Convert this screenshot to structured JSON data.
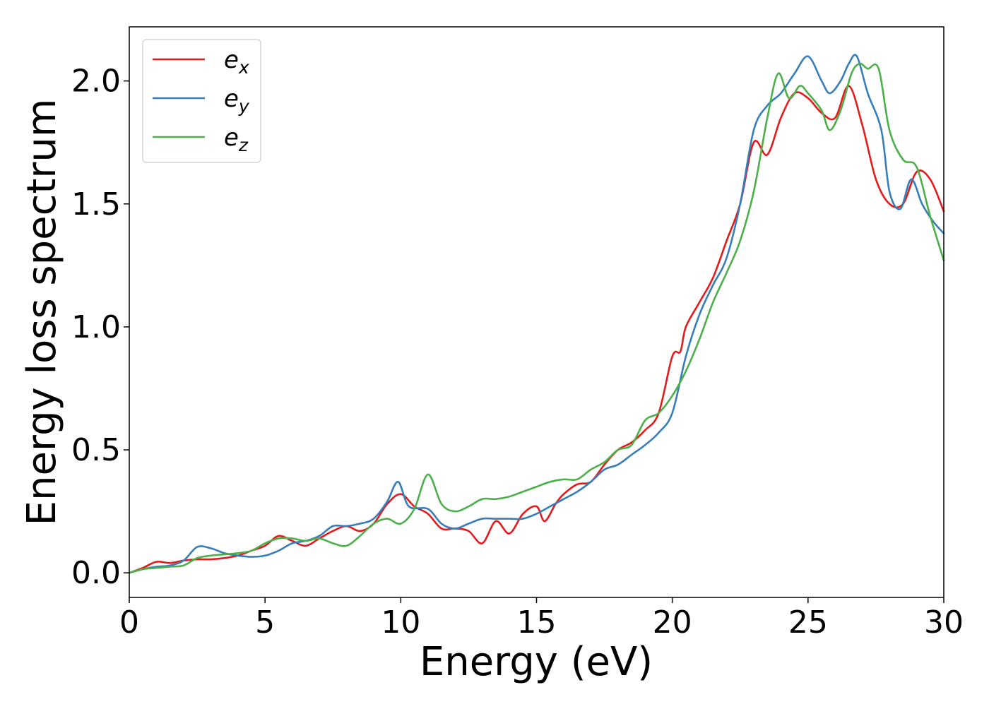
{
  "chart_data": {
    "type": "line",
    "title": "",
    "xlabel": "Energy (eV)",
    "ylabel": "Energy loss spectrum",
    "xlim": [
      0,
      30
    ],
    "ylim": [
      -0.1,
      2.22
    ],
    "xticks": [
      0,
      5,
      10,
      15,
      20,
      25,
      30
    ],
    "xtick_labels": [
      "0",
      "5",
      "10",
      "15",
      "20",
      "25",
      "30"
    ],
    "yticks": [
      0.0,
      0.5,
      1.0,
      1.5,
      2.0
    ],
    "ytick_labels": [
      "0.0",
      "0.5",
      "1.0",
      "1.5",
      "2.0"
    ],
    "grid": false,
    "legend_position": "top-left",
    "series": [
      {
        "name": "e",
        "subscript": "x",
        "color": "#e41a1c",
        "points": [
          [
            0,
            0
          ],
          [
            0.5,
            0.02
          ],
          [
            1,
            0.045
          ],
          [
            1.5,
            0.04
          ],
          [
            2,
            0.05
          ],
          [
            2.5,
            0.055
          ],
          [
            3,
            0.055
          ],
          [
            3.5,
            0.06
          ],
          [
            4,
            0.07
          ],
          [
            4.5,
            0.09
          ],
          [
            5,
            0.11
          ],
          [
            5.5,
            0.15
          ],
          [
            6,
            0.13
          ],
          [
            6.5,
            0.11
          ],
          [
            7,
            0.14
          ],
          [
            7.5,
            0.17
          ],
          [
            8,
            0.19
          ],
          [
            8.5,
            0.17
          ],
          [
            9,
            0.2
          ],
          [
            9.5,
            0.28
          ],
          [
            10,
            0.32
          ],
          [
            10.5,
            0.27
          ],
          [
            11,
            0.24
          ],
          [
            11.5,
            0.18
          ],
          [
            12,
            0.18
          ],
          [
            12.5,
            0.17
          ],
          [
            13,
            0.12
          ],
          [
            13.5,
            0.21
          ],
          [
            14,
            0.16
          ],
          [
            14.5,
            0.24
          ],
          [
            15,
            0.27
          ],
          [
            15.3,
            0.21
          ],
          [
            15.7,
            0.28
          ],
          [
            16,
            0.32
          ],
          [
            16.5,
            0.36
          ],
          [
            17,
            0.37
          ],
          [
            17.5,
            0.44
          ],
          [
            18,
            0.5
          ],
          [
            18.5,
            0.53
          ],
          [
            19,
            0.58
          ],
          [
            19.5,
            0.65
          ],
          [
            20,
            0.88
          ],
          [
            20.3,
            0.9
          ],
          [
            20.5,
            1.0
          ],
          [
            21,
            1.1
          ],
          [
            21.5,
            1.2
          ],
          [
            22,
            1.35
          ],
          [
            22.5,
            1.5
          ],
          [
            23,
            1.75
          ],
          [
            23.5,
            1.7
          ],
          [
            24,
            1.85
          ],
          [
            24.5,
            1.95
          ],
          [
            25,
            1.93
          ],
          [
            25.5,
            1.87
          ],
          [
            26,
            1.85
          ],
          [
            26.5,
            1.98
          ],
          [
            27,
            1.82
          ],
          [
            27.5,
            1.6
          ],
          [
            28,
            1.5
          ],
          [
            28.5,
            1.5
          ],
          [
            29,
            1.63
          ],
          [
            29.5,
            1.6
          ],
          [
            30,
            1.47
          ]
        ]
      },
      {
        "name": "e",
        "subscript": "y",
        "color": "#377eb8",
        "points": [
          [
            0,
            0
          ],
          [
            0.5,
            0.015
          ],
          [
            1,
            0.025
          ],
          [
            1.5,
            0.03
          ],
          [
            2,
            0.05
          ],
          [
            2.5,
            0.105
          ],
          [
            3,
            0.1
          ],
          [
            3.5,
            0.08
          ],
          [
            4,
            0.07
          ],
          [
            4.5,
            0.065
          ],
          [
            5,
            0.07
          ],
          [
            5.5,
            0.09
          ],
          [
            6,
            0.12
          ],
          [
            6.5,
            0.13
          ],
          [
            7,
            0.15
          ],
          [
            7.5,
            0.19
          ],
          [
            8,
            0.19
          ],
          [
            8.5,
            0.2
          ],
          [
            9,
            0.22
          ],
          [
            9.5,
            0.29
          ],
          [
            9.9,
            0.37
          ],
          [
            10.3,
            0.27
          ],
          [
            11,
            0.26
          ],
          [
            11.5,
            0.2
          ],
          [
            12,
            0.18
          ],
          [
            12.5,
            0.2
          ],
          [
            13,
            0.22
          ],
          [
            13.5,
            0.22
          ],
          [
            14,
            0.22
          ],
          [
            14.5,
            0.22
          ],
          [
            15,
            0.24
          ],
          [
            15.5,
            0.27
          ],
          [
            16,
            0.3
          ],
          [
            16.5,
            0.33
          ],
          [
            17,
            0.37
          ],
          [
            17.5,
            0.42
          ],
          [
            18,
            0.44
          ],
          [
            18.5,
            0.48
          ],
          [
            19,
            0.52
          ],
          [
            19.5,
            0.57
          ],
          [
            20,
            0.65
          ],
          [
            20.5,
            0.88
          ],
          [
            21,
            1.05
          ],
          [
            21.5,
            1.17
          ],
          [
            22,
            1.28
          ],
          [
            22.5,
            1.5
          ],
          [
            23,
            1.8
          ],
          [
            23.5,
            1.9
          ],
          [
            24,
            1.95
          ],
          [
            24.5,
            2.03
          ],
          [
            25,
            2.1
          ],
          [
            25.5,
            2.0
          ],
          [
            25.8,
            1.95
          ],
          [
            26.2,
            2.0
          ],
          [
            26.5,
            2.07
          ],
          [
            26.8,
            2.1
          ],
          [
            27.2,
            1.95
          ],
          [
            27.7,
            1.8
          ],
          [
            28,
            1.55
          ],
          [
            28.4,
            1.48
          ],
          [
            28.8,
            1.6
          ],
          [
            29.2,
            1.5
          ],
          [
            29.6,
            1.43
          ],
          [
            30,
            1.38
          ]
        ]
      },
      {
        "name": "e",
        "subscript": "z",
        "color": "#4daf4a",
        "points": [
          [
            0,
            0
          ],
          [
            0.5,
            0.015
          ],
          [
            1,
            0.02
          ],
          [
            1.5,
            0.025
          ],
          [
            2,
            0.03
          ],
          [
            2.5,
            0.06
          ],
          [
            3,
            0.07
          ],
          [
            3.5,
            0.075
          ],
          [
            4,
            0.08
          ],
          [
            4.5,
            0.09
          ],
          [
            5,
            0.12
          ],
          [
            5.5,
            0.14
          ],
          [
            6,
            0.14
          ],
          [
            6.5,
            0.13
          ],
          [
            7,
            0.14
          ],
          [
            7.5,
            0.12
          ],
          [
            8,
            0.11
          ],
          [
            8.5,
            0.15
          ],
          [
            9,
            0.2
          ],
          [
            9.5,
            0.22
          ],
          [
            10,
            0.2
          ],
          [
            10.5,
            0.26
          ],
          [
            11,
            0.4
          ],
          [
            11.5,
            0.28
          ],
          [
            12,
            0.25
          ],
          [
            12.5,
            0.27
          ],
          [
            13,
            0.3
          ],
          [
            13.5,
            0.3
          ],
          [
            14,
            0.31
          ],
          [
            14.5,
            0.33
          ],
          [
            15,
            0.35
          ],
          [
            15.5,
            0.37
          ],
          [
            16,
            0.38
          ],
          [
            16.5,
            0.38
          ],
          [
            17,
            0.42
          ],
          [
            17.5,
            0.45
          ],
          [
            18,
            0.5
          ],
          [
            18.5,
            0.52
          ],
          [
            19,
            0.62
          ],
          [
            19.5,
            0.65
          ],
          [
            20,
            0.72
          ],
          [
            20.5,
            0.82
          ],
          [
            21,
            0.95
          ],
          [
            21.5,
            1.1
          ],
          [
            22,
            1.22
          ],
          [
            22.5,
            1.35
          ],
          [
            23,
            1.55
          ],
          [
            23.5,
            1.85
          ],
          [
            23.9,
            2.03
          ],
          [
            24.3,
            1.93
          ],
          [
            24.7,
            1.98
          ],
          [
            25,
            1.95
          ],
          [
            25.5,
            1.88
          ],
          [
            25.8,
            1.8
          ],
          [
            26.2,
            1.88
          ],
          [
            26.6,
            2.03
          ],
          [
            26.9,
            2.07
          ],
          [
            27.2,
            2.05
          ],
          [
            27.6,
            2.05
          ],
          [
            28,
            1.8
          ],
          [
            28.5,
            1.68
          ],
          [
            29,
            1.65
          ],
          [
            29.5,
            1.45
          ],
          [
            30,
            1.27
          ]
        ]
      }
    ]
  }
}
